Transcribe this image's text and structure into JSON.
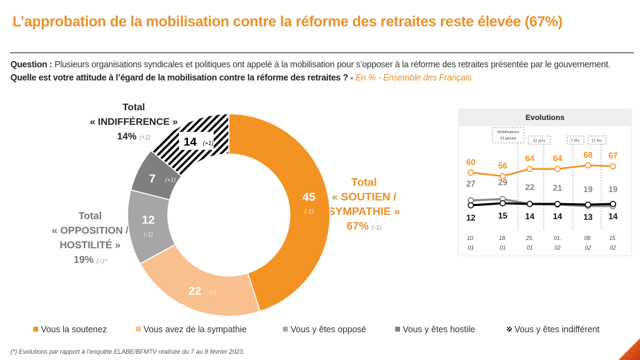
{
  "title": "L’approbation de la mobilisation contre la réforme des retraites reste élevée (67%)",
  "question": {
    "label": "Question :",
    "text": " Plusieurs organisations syndicales et politiques ont appelé à la mobilisation pour s’opposer à la réforme des retraites présentée par le gouvernement. ",
    "bold": "Quelle est votre attitude à l’égard de la mobilisation contre la réforme des retraites ? -",
    "sub": " En % - Ensemble des Français"
  },
  "totals": {
    "indifference": {
      "l1": "Total",
      "l2": "« INDIFFÉRENCE »",
      "value": "14%",
      "delta": "(+1)"
    },
    "opposition": {
      "l1": "Total",
      "l2": "« OPPOSITION /",
      "l3": "HOSTILITÉ »",
      "value": "19%",
      "delta": "(=)*"
    },
    "soutien": {
      "l1": "Total",
      "l2": "« SOUTIEN /",
      "l3": "SYMPATHIE »",
      "value": "67%",
      "delta": "(-1)"
    }
  },
  "colors": {
    "soutien": "#F39323",
    "sympathie": "#F8C08E",
    "oppose": "#A6A6A6",
    "hostile": "#7F7F7F",
    "indifferent": "#000000",
    "accent": "#E8912B"
  },
  "legend": [
    {
      "label": "Vous la soutenez",
      "key": "soutien"
    },
    {
      "label": "Vous avez de la sympathie",
      "key": "sympathie"
    },
    {
      "label": "Vous y êtes opposé",
      "key": "oppose"
    },
    {
      "label": "Vous y êtes hostile",
      "key": "hostile"
    },
    {
      "label": "Vous y êtes indifférent",
      "key": "indifferent"
    }
  ],
  "evolutions_title": "Evolutions",
  "footnote": "(*) Evolutions par rapport à l’enquête ELABE/BFMTV réalisée du 7 au 8 février 2023.",
  "chart_data": [
    {
      "type": "pie",
      "subtype": "donut",
      "title": "Attitude à l’égard de la mobilisation contre la réforme des retraites",
      "unit": "%",
      "slices": [
        {
          "label": "Vous la soutenez",
          "value": 45,
          "delta": "(-1)"
        },
        {
          "label": "Vous avez de la sympathie",
          "value": 22,
          "delta": "(=)"
        },
        {
          "label": "Vous y êtes opposé",
          "value": 12,
          "delta": "(-1)"
        },
        {
          "label": "Vous y êtes hostile",
          "value": 7,
          "delta": "(+1)"
        },
        {
          "label": "Vous y êtes indifférent",
          "value": 14,
          "delta": "(+1)"
        }
      ],
      "legend": "bottom"
    },
    {
      "type": "line",
      "title": "Evolutions",
      "categories": [
        "10. 01",
        "18. 01",
        "25. 01",
        "01. 02",
        "08. 02",
        "15. 02"
      ],
      "series": [
        {
          "name": "Total soutien / sympathie",
          "values": [
            60,
            56,
            64,
            64,
            68,
            67
          ]
        },
        {
          "name": "Total opposition / hostilité",
          "values": [
            27,
            29,
            22,
            21,
            19,
            19
          ]
        },
        {
          "name": "Total indifférence",
          "values": [
            12,
            15,
            14,
            14,
            13,
            14
          ]
        }
      ],
      "annotations": [
        {
          "text": [
            "Mobilisations",
            "19 janvier"
          ],
          "after": "18. 01"
        },
        {
          "text": [
            "31 janv."
          ],
          "after": "25. 01"
        },
        {
          "text": [
            "7 fév."
          ],
          "after": "01. 02"
        },
        {
          "text": [
            "11 fév."
          ],
          "after": "08. 02"
        }
      ],
      "grid": false
    }
  ]
}
